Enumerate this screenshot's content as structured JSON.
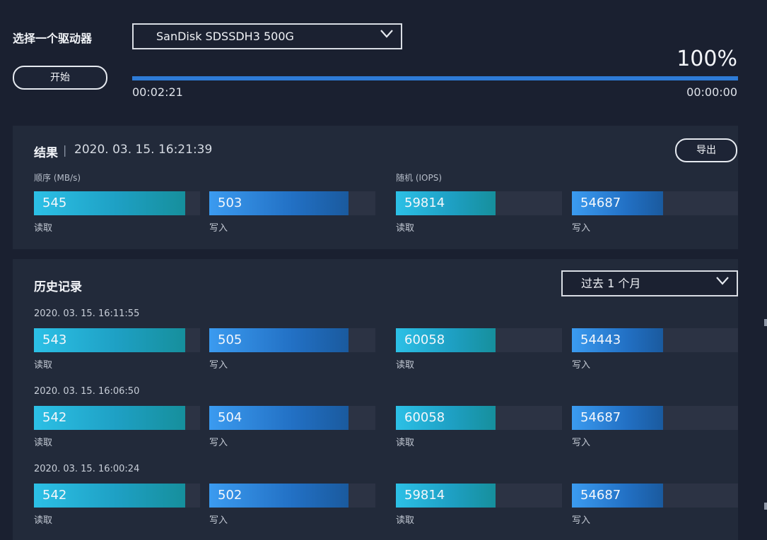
{
  "drive": {
    "label": "选择一个驱动器",
    "selected": "SanDisk SDSSDH3 500G",
    "start_label": "开始"
  },
  "progress": {
    "percent_text": "100%",
    "fraction": 1.0,
    "elapsed": "00:02:21",
    "remaining": "00:00:00"
  },
  "results": {
    "title": "结果",
    "separator": "|",
    "timestamp": "2020. 03. 15. 16:21:39",
    "export_label": "导出",
    "seq_label": "顺序 (MB/s)",
    "rand_label": "随机 (IOPS)",
    "bars": [
      {
        "value": "545",
        "caption": "读取",
        "kind": "read",
        "fill": 0.91
      },
      {
        "value": "503",
        "caption": "写入",
        "kind": "write",
        "fill": 0.84
      },
      {
        "value": "59814",
        "caption": "读取",
        "kind": "read",
        "fill": 0.6
      },
      {
        "value": "54687",
        "caption": "写入",
        "kind": "write",
        "fill": 0.55
      }
    ]
  },
  "history": {
    "title": "历史记录",
    "filter": "过去 1 个月",
    "entries": [
      {
        "date": "2020. 03. 15. 16:11:55",
        "bars": [
          {
            "value": "543",
            "caption": "读取",
            "kind": "read",
            "fill": 0.91
          },
          {
            "value": "505",
            "caption": "写入",
            "kind": "write",
            "fill": 0.84
          },
          {
            "value": "60058",
            "caption": "读取",
            "kind": "read",
            "fill": 0.6
          },
          {
            "value": "54443",
            "caption": "写入",
            "kind": "write",
            "fill": 0.55
          }
        ]
      },
      {
        "date": "2020. 03. 15. 16:06:50",
        "bars": [
          {
            "value": "542",
            "caption": "读取",
            "kind": "read",
            "fill": 0.91
          },
          {
            "value": "504",
            "caption": "写入",
            "kind": "write",
            "fill": 0.84
          },
          {
            "value": "60058",
            "caption": "读取",
            "kind": "read",
            "fill": 0.6
          },
          {
            "value": "54687",
            "caption": "写入",
            "kind": "write",
            "fill": 0.55
          }
        ]
      },
      {
        "date": "2020. 03. 15. 16:00:24",
        "bars": [
          {
            "value": "542",
            "caption": "读取",
            "kind": "read",
            "fill": 0.91
          },
          {
            "value": "502",
            "caption": "写入",
            "kind": "write",
            "fill": 0.84
          },
          {
            "value": "59814",
            "caption": "读取",
            "kind": "read",
            "fill": 0.6
          },
          {
            "value": "54687",
            "caption": "写入",
            "kind": "write",
            "fill": 0.55
          }
        ]
      }
    ]
  },
  "colors": {
    "background": "#1a2030",
    "panel": "#222a3a",
    "progress": "#2e7bd6",
    "read_bar": "#1ea0c4",
    "write_bar": "#2270c4"
  }
}
